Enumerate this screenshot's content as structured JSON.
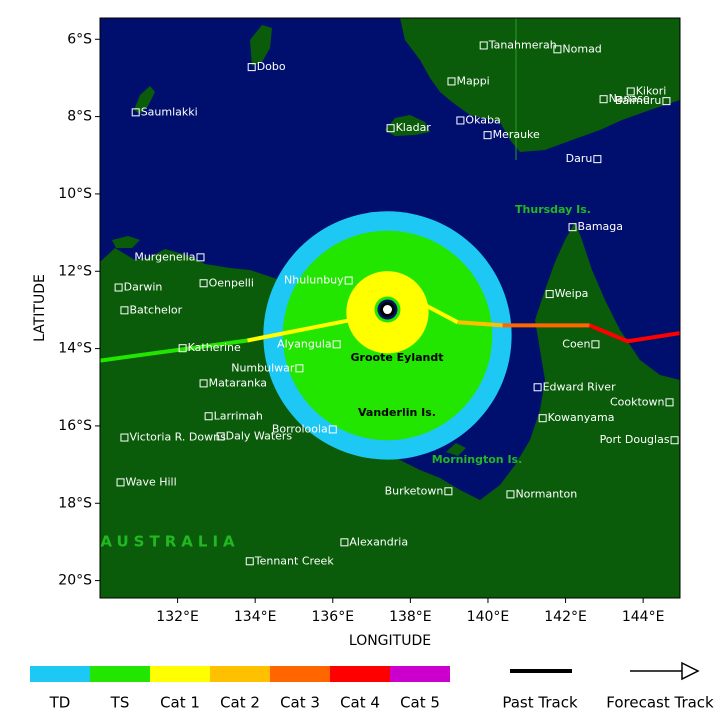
{
  "map": {
    "x_label": "LONGITUDE",
    "y_label": "LATITUDE",
    "xlim": [
      130,
      144.95
    ],
    "ylim": [
      -5.45,
      -20.45
    ],
    "xticks": [
      {
        "value": 132,
        "label": "132°E"
      },
      {
        "value": 134,
        "label": "134°E"
      },
      {
        "value": 136,
        "label": "136°E"
      },
      {
        "value": 138,
        "label": "138°E"
      },
      {
        "value": 140,
        "label": "140°E"
      },
      {
        "value": 142,
        "label": "142°E"
      },
      {
        "value": 144,
        "label": "144°E"
      }
    ],
    "yticks": [
      {
        "value": -6,
        "label": "6°S"
      },
      {
        "value": -8,
        "label": "8°S"
      },
      {
        "value": -10,
        "label": "10°S"
      },
      {
        "value": -12,
        "label": "12°S"
      },
      {
        "value": -14,
        "label": "14°S"
      },
      {
        "value": -16,
        "label": "16°S"
      },
      {
        "value": -18,
        "label": "18°S"
      },
      {
        "value": -20,
        "label": "20°S"
      }
    ],
    "places": [
      {
        "name": "Dobo",
        "lon": 133.91,
        "lat": -6.72
      },
      {
        "name": "Saumlakki",
        "lon": 130.92,
        "lat": -7.89
      },
      {
        "name": "Tanahmerah",
        "lon": 139.89,
        "lat": -6.16
      },
      {
        "name": "Nomad",
        "lon": 141.79,
        "lat": -6.26
      },
      {
        "name": "Mappi",
        "lon": 139.06,
        "lat": -7.09
      },
      {
        "name": "Kikori",
        "lon": 143.68,
        "lat": -7.35
      },
      {
        "name": "Nanase",
        "lon": 142.98,
        "lat": -7.55
      },
      {
        "name": "Baimuru",
        "lon": 144.6,
        "lat": -7.6
      },
      {
        "name": "Okaba",
        "lon": 139.29,
        "lat": -8.1
      },
      {
        "name": "Kladar",
        "lon": 137.49,
        "lat": -8.3
      },
      {
        "name": "Merauke",
        "lon": 139.99,
        "lat": -8.48
      },
      {
        "name": "Daru",
        "lon": 142.82,
        "lat": -9.1
      },
      {
        "name": "Bamaga",
        "lon": 142.18,
        "lat": -10.86
      },
      {
        "name": "Murgenella",
        "lon": 132.59,
        "lat": -11.64
      },
      {
        "name": "Nhulunbuy",
        "lon": 136.41,
        "lat": -12.24
      },
      {
        "name": "Darwin",
        "lon": 130.48,
        "lat": -12.42
      },
      {
        "name": "Oenpelli",
        "lon": 132.67,
        "lat": -12.31
      },
      {
        "name": "Weipa",
        "lon": 141.59,
        "lat": -12.59
      },
      {
        "name": "Batchelor",
        "lon": 130.63,
        "lat": -13.01
      },
      {
        "name": "Alyangula",
        "lon": 136.1,
        "lat": -13.89
      },
      {
        "name": "Katherine",
        "lon": 132.13,
        "lat": -13.99
      },
      {
        "name": "Coen",
        "lon": 142.77,
        "lat": -13.89
      },
      {
        "name": "Numbulwar",
        "lon": 135.14,
        "lat": -14.51
      },
      {
        "name": "Mataranka",
        "lon": 132.67,
        "lat": -14.9
      },
      {
        "name": "Edward River",
        "lon": 141.28,
        "lat": -15.0
      },
      {
        "name": "Cooktown",
        "lon": 144.68,
        "lat": -15.39
      },
      {
        "name": "Larrimah",
        "lon": 132.8,
        "lat": -15.75
      },
      {
        "name": "Kowanyama",
        "lon": 141.41,
        "lat": -15.8
      },
      {
        "name": "Borroloola",
        "lon": 136.0,
        "lat": -16.09
      },
      {
        "name": "Victoria R. Downs",
        "lon": 130.63,
        "lat": -16.3
      },
      {
        "name": "Daly Waters",
        "lon": 133.11,
        "lat": -16.27
      },
      {
        "name": "Port Douglas",
        "lon": 144.81,
        "lat": -16.37
      },
      {
        "name": "Wave Hill",
        "lon": 130.53,
        "lat": -17.46
      },
      {
        "name": "Burketown",
        "lon": 138.98,
        "lat": -17.69
      },
      {
        "name": "Normanton",
        "lon": 140.58,
        "lat": -17.77
      },
      {
        "name": "Alexandria",
        "lon": 136.3,
        "lat": -19.01
      },
      {
        "name": "Tennant Creek",
        "lon": 133.86,
        "lat": -19.5
      }
    ],
    "regions": {
      "thursday": "Thursday Is.",
      "groote": "Groote Eylandt",
      "vanderlin": "Vanderlin Is.",
      "mornington": "Mornington Is.",
      "australia": "AUSTRALIA"
    },
    "storm": {
      "lon": 137.41,
      "lat": -12.99
    },
    "categories": [
      {
        "label": "TD",
        "color": "#1ec8f5",
        "circle": {
          "lon": 137.41,
          "lat": -13.66,
          "radius": 3.2
        }
      },
      {
        "label": "TS",
        "color": "#22e600",
        "circle": {
          "lon": 137.41,
          "lat": -13.66,
          "radius": 2.7
        },
        "track": {
          "lon": [
            130.0,
            133.8
          ],
          "lat": [
            -14.31,
            -13.79
          ]
        }
      },
      {
        "label": "Cat 1",
        "color": "#ffff00",
        "circle": {
          "lon": 137.41,
          "lat": -13.06,
          "radius": 1.06
        },
        "track": {
          "lon": [
            133.8,
            138.39,
            139.22
          ],
          "lat": [
            -13.79,
            -12.88,
            -13.32
          ]
        }
      },
      {
        "label": "Cat 2",
        "color": "#ffc000",
        "track": {
          "lon": [
            139.22,
            140.38
          ],
          "lat": [
            -13.32,
            -13.4
          ]
        }
      },
      {
        "label": "Cat 3",
        "color": "#ff6600",
        "track": {
          "lon": [
            140.38,
            142.62
          ],
          "lat": [
            -13.4,
            -13.4
          ]
        }
      },
      {
        "label": "Cat 4",
        "color": "#ff0000",
        "track": {
          "lon": [
            142.62,
            143.6,
            144.95
          ],
          "lat": [
            -13.4,
            -13.81,
            -13.6
          ]
        }
      },
      {
        "label": "Cat 5",
        "color": "#cc00cc"
      }
    ],
    "past_track": "Past Track",
    "forecast_track": "Forecast Track"
  }
}
